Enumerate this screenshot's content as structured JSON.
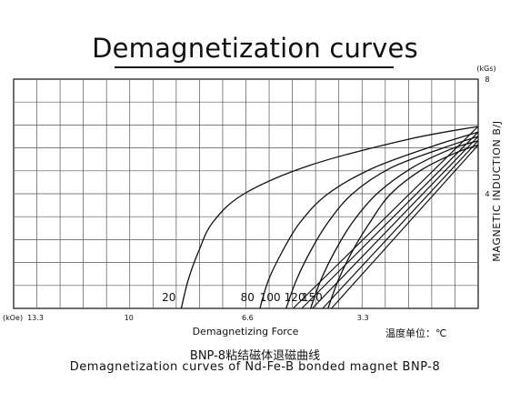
{
  "title": "Demagnetization curves",
  "caption_cn": "BNP-8粘结磁体退磁曲线",
  "caption_en": "Demagnetization curves of Nd-Fe-B bonded magnet BNP-8",
  "chart_data": {
    "type": "line",
    "title": "Demagnetization curves",
    "xlabel": "Demagnetizing Force",
    "x_unit": "(kOe)",
    "x_ticks": [
      "13.3",
      "10",
      "6.6",
      "3.3"
    ],
    "xlim": [
      13.3,
      0
    ],
    "ylabel": "MAGNETIC INDUCTION B/J",
    "y_unit": "(kGs)",
    "y_ticks": [
      "4",
      "8"
    ],
    "ylim": [
      0,
      8
    ],
    "grid": true,
    "temperature_unit_label": "温度单位：℃",
    "series": [
      {
        "name": "20",
        "B_curve": [
          [
            8.5,
            0
          ],
          [
            8.3,
            1
          ],
          [
            8.0,
            2
          ],
          [
            7.6,
            3
          ],
          [
            6.7,
            4
          ],
          [
            4.8,
            5
          ],
          [
            2.0,
            5.9
          ],
          [
            0,
            6.35
          ]
        ]
      },
      {
        "name": "80",
        "B_curve": [
          [
            6.25,
            0
          ],
          [
            6.0,
            1
          ],
          [
            5.6,
            2
          ],
          [
            5.1,
            3
          ],
          [
            4.3,
            4
          ],
          [
            3.0,
            4.9
          ],
          [
            1.2,
            5.7
          ],
          [
            0,
            6.15
          ]
        ]
      },
      {
        "name": "100",
        "B_curve": [
          [
            5.5,
            0
          ],
          [
            5.2,
            1
          ],
          [
            4.8,
            2
          ],
          [
            4.3,
            3
          ],
          [
            3.6,
            4
          ],
          [
            2.5,
            4.9
          ],
          [
            1.0,
            5.6
          ],
          [
            0,
            6.0
          ]
        ]
      },
      {
        "name": "120",
        "B_curve": [
          [
            4.8,
            0
          ],
          [
            4.5,
            1
          ],
          [
            4.1,
            2
          ],
          [
            3.6,
            3
          ],
          [
            2.9,
            4
          ],
          [
            1.9,
            4.9
          ],
          [
            0.8,
            5.55
          ],
          [
            0,
            5.85
          ]
        ]
      },
      {
        "name": "150",
        "B_curve": [
          [
            4.3,
            0
          ],
          [
            4.0,
            1
          ],
          [
            3.6,
            2
          ],
          [
            3.1,
            3
          ],
          [
            2.5,
            4
          ],
          [
            1.6,
            4.85
          ],
          [
            0.6,
            5.45
          ],
          [
            0,
            5.7
          ]
        ]
      }
    ],
    "J_lines": [
      {
        "name": "20",
        "points": [
          [
            5.3,
            0
          ],
          [
            0,
            6.35
          ]
        ]
      },
      {
        "name": "80",
        "points": [
          [
            5.05,
            0
          ],
          [
            0,
            6.15
          ]
        ]
      },
      {
        "name": "100",
        "points": [
          [
            4.75,
            0
          ],
          [
            0,
            6.0
          ]
        ]
      },
      {
        "name": "120",
        "points": [
          [
            4.45,
            0
          ],
          [
            0,
            5.85
          ]
        ]
      },
      {
        "name": "150",
        "points": [
          [
            4.2,
            0
          ],
          [
            0,
            5.7
          ]
        ]
      }
    ]
  }
}
